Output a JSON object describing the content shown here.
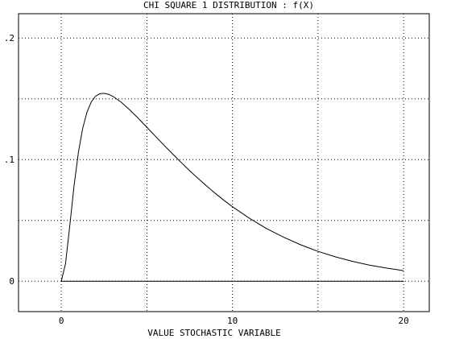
{
  "chart_data": {
    "type": "line",
    "title": "CHI SQUARE 1 DISTRIBUTION : f(X)",
    "xlabel": "VALUE STOCHASTIC VARIABLE",
    "ylabel": "",
    "xlim": [
      -2.5,
      21.5
    ],
    "ylim": [
      -0.025,
      0.22
    ],
    "x_ticks": [
      0,
      10,
      20
    ],
    "x_tick_labels": [
      "0",
      "10",
      "20"
    ],
    "y_ticks": [
      0,
      0.1,
      0.2
    ],
    "y_tick_labels": [
      "0",
      ".1",
      ".2"
    ],
    "x_grid": [
      0,
      5,
      10,
      15,
      20
    ],
    "y_grid": [
      0,
      0.05,
      0.1,
      0.15,
      0.2
    ],
    "grid": true,
    "grid_style": "dotted",
    "series": [
      {
        "color": "#000000",
        "x": [
          0,
          0.25,
          0.5,
          0.75,
          1,
          1.25,
          1.5,
          1.75,
          2,
          2.25,
          2.5,
          2.75,
          3,
          3.5,
          4,
          4.5,
          5,
          5.5,
          6,
          6.5,
          7,
          7.5,
          8,
          8.5,
          9,
          9.5,
          10,
          11,
          12,
          13,
          14,
          15,
          16,
          17,
          18,
          19,
          20
        ],
        "y": [
          0,
          0.0146,
          0.0466,
          0.0792,
          0.1062,
          0.1258,
          0.139,
          0.1474,
          0.1521,
          0.1542,
          0.1545,
          0.1537,
          0.1521,
          0.1472,
          0.1409,
          0.1339,
          0.1266,
          0.1192,
          0.1119,
          0.1047,
          0.0977,
          0.0909,
          0.0844,
          0.0782,
          0.0722,
          0.0666,
          0.0613,
          0.0517,
          0.0433,
          0.0361,
          0.0299,
          0.0245,
          0.0201,
          0.0164,
          0.0133,
          0.0108,
          0.0087
        ]
      }
    ],
    "baseline": {
      "y": 0,
      "x": [
        0,
        20
      ]
    }
  }
}
